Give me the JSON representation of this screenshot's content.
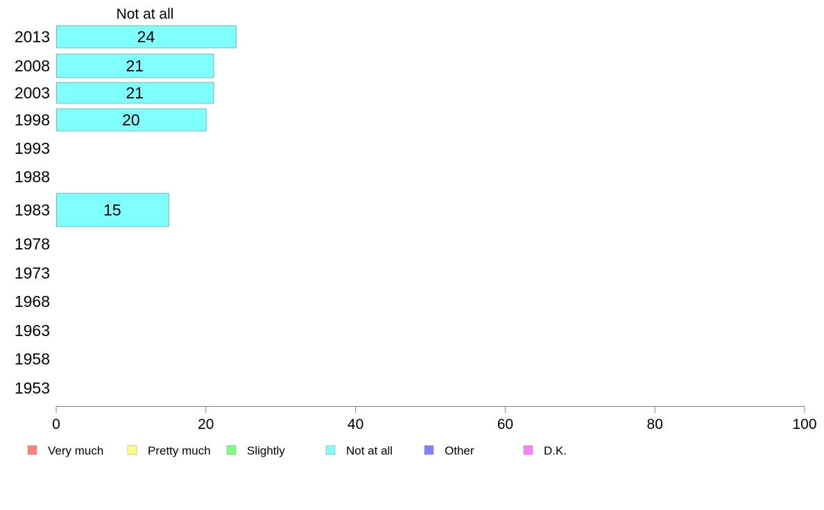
{
  "chart_data": {
    "type": "bar",
    "orientation": "horizontal",
    "title": "Not at all",
    "categories": [
      "2013",
      "2008",
      "2003",
      "1998",
      "1993",
      "1988",
      "1983",
      "1978",
      "1973",
      "1968",
      "1963",
      "1958",
      "1953"
    ],
    "series": [
      {
        "name": "Not at all",
        "values": [
          24,
          21,
          21,
          20,
          null,
          null,
          15,
          null,
          null,
          null,
          null,
          null,
          null
        ]
      }
    ],
    "xlim": [
      0,
      100
    ],
    "xticks": [
      "0",
      "20",
      "40",
      "60",
      "80",
      "100"
    ],
    "legend": {
      "placement": "bottom",
      "items": [
        {
          "label": "Very much",
          "color": "#ff8080"
        },
        {
          "label": "Pretty much",
          "color": "#ffff80"
        },
        {
          "label": "Slightly",
          "color": "#80ff80"
        },
        {
          "label": "Not at all",
          "color": "#80ffff"
        },
        {
          "label": "Other",
          "color": "#8080ff"
        },
        {
          "label": "D.K.",
          "color": "#ff80ff"
        }
      ]
    },
    "grid": false
  }
}
